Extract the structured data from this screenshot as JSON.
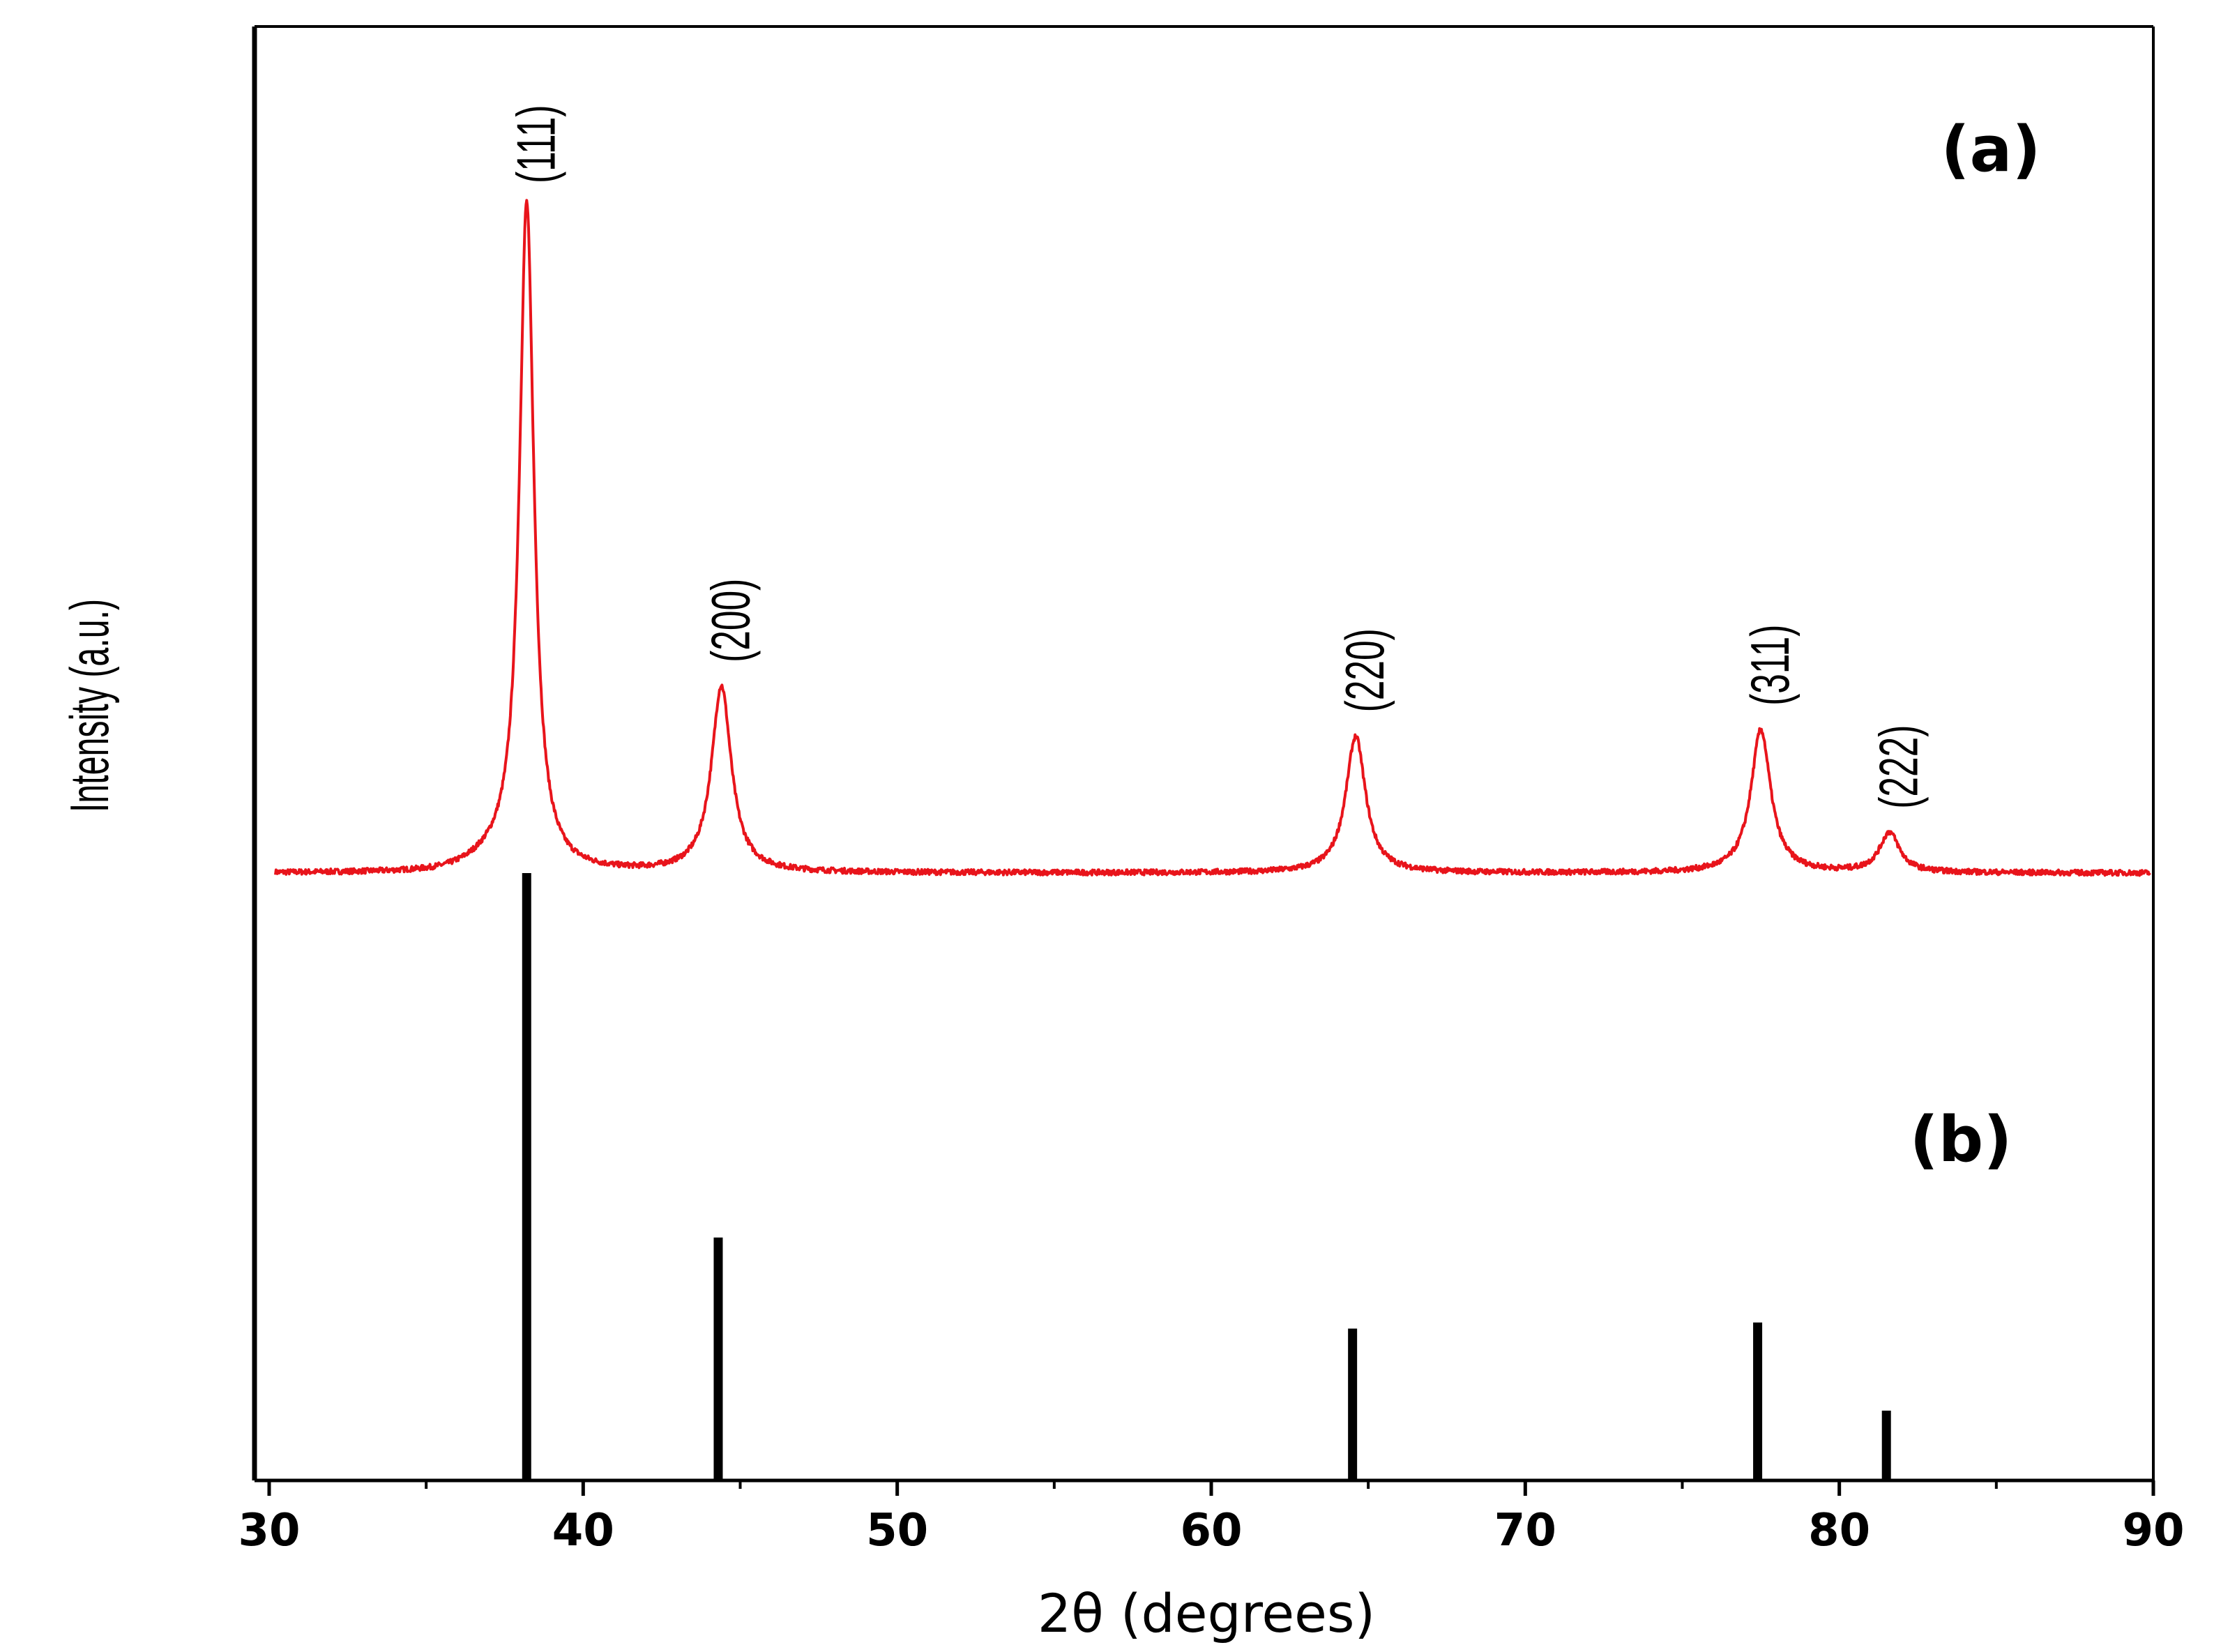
{
  "chart_data": {
    "type": "line",
    "xlabel": "2θ (degrees)",
    "ylabel": "Intensity (a.u.)",
    "xlim": [
      30,
      90
    ],
    "x_ticks": [
      30,
      40,
      50,
      60,
      70,
      80,
      90
    ],
    "x_tick_labels": [
      "30",
      "40",
      "50",
      "60",
      "70",
      "80",
      "90"
    ],
    "x_minor_ticks": [
      35,
      45,
      55,
      65,
      75,
      85
    ],
    "y_ticks_shown": false,
    "grid": false,
    "legend": "none",
    "panel_labels": [
      "(a)",
      "(b)"
    ],
    "pattern_a": {
      "color": "#e8141b",
      "baseline": 0.0,
      "peaks": [
        {
          "x": 38.2,
          "height": 1.0,
          "label": "(111)"
        },
        {
          "x": 44.4,
          "height": 0.28,
          "label": "(200)"
        },
        {
          "x": 64.6,
          "height": 0.205,
          "label": "(220)"
        },
        {
          "x": 77.5,
          "height": 0.215,
          "label": "(311)"
        },
        {
          "x": 81.6,
          "height": 0.06,
          "label": "(222)"
        }
      ]
    },
    "pattern_b": {
      "color": "#000000",
      "type": "stick",
      "sticks": [
        {
          "x": 38.2,
          "height": 1.0
        },
        {
          "x": 44.3,
          "height": 0.4
        },
        {
          "x": 64.5,
          "height": 0.25
        },
        {
          "x": 77.4,
          "height": 0.26
        },
        {
          "x": 81.5,
          "height": 0.115
        }
      ]
    }
  }
}
